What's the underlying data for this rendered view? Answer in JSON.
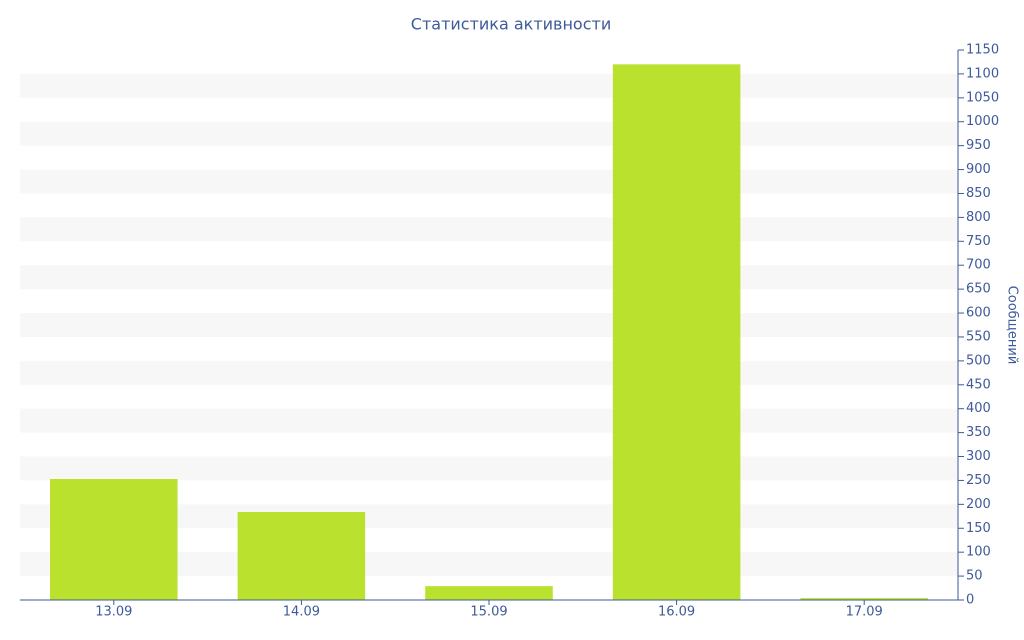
{
  "chart_data": {
    "type": "bar",
    "title": "Статистика активности",
    "y_label": "Сообщений",
    "categories": [
      "13.09",
      "14.09",
      "15.09",
      "16.09",
      "17.09"
    ],
    "values": [
      253,
      184,
      29,
      1120,
      4
    ],
    "color": "#bbe12f",
    "ylim": [
      0,
      1150
    ],
    "yticks": [
      0,
      50,
      100,
      150,
      200,
      250,
      300,
      350,
      400,
      450,
      500,
      550,
      600,
      650,
      700,
      750,
      800,
      850,
      900,
      950,
      1000,
      1050,
      1100,
      1150
    ],
    "grid": true,
    "y_axis_side": "right"
  }
}
